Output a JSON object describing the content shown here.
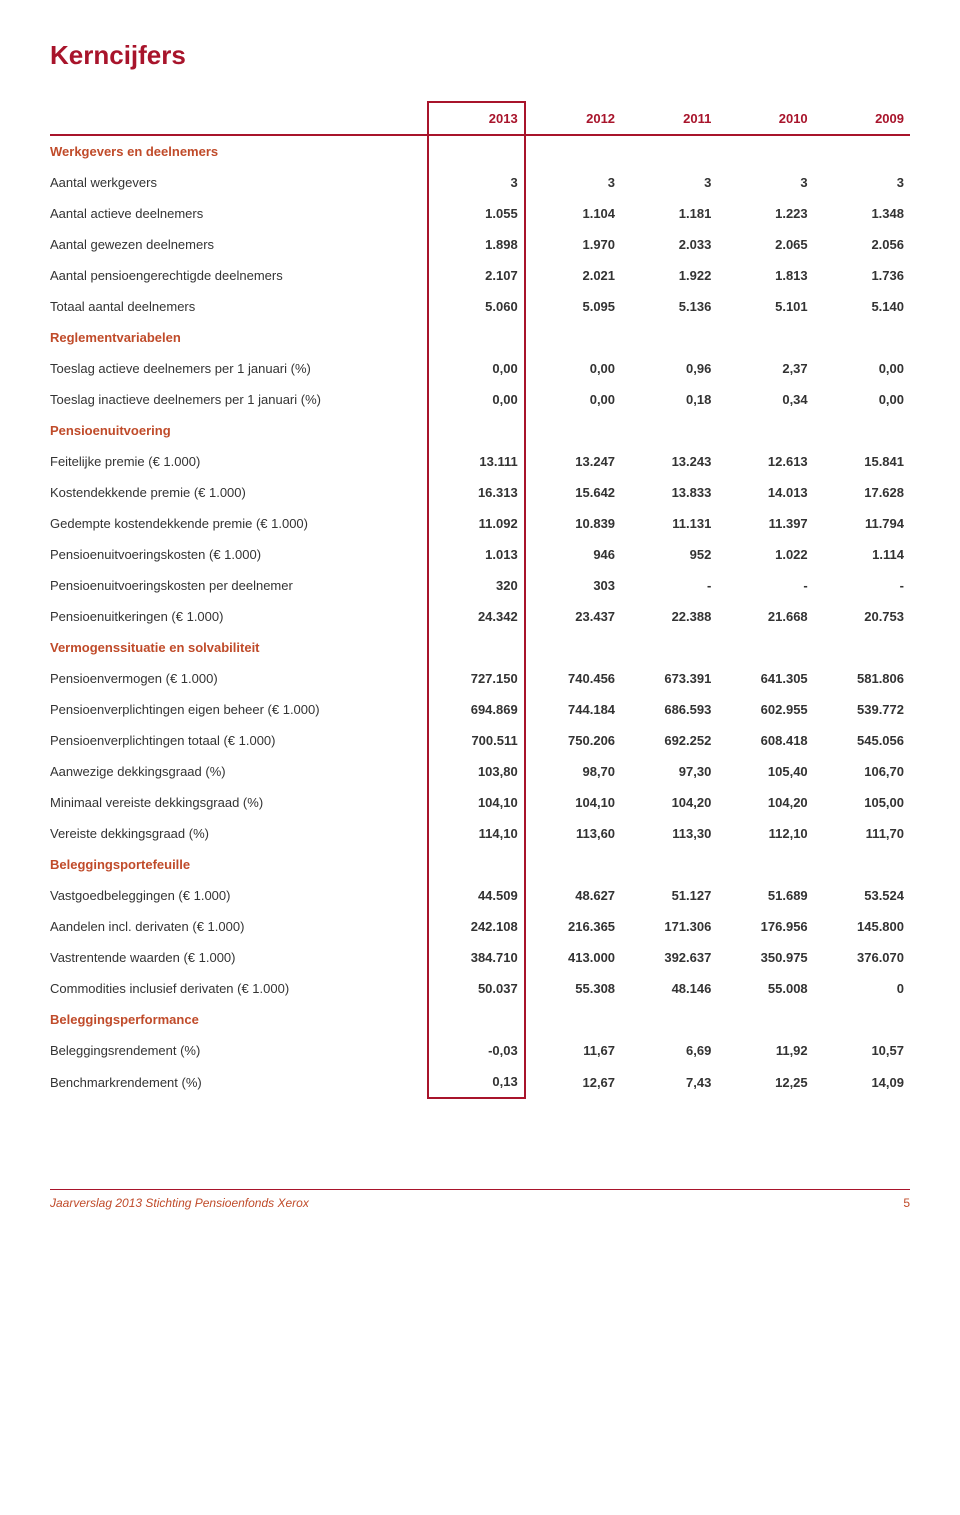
{
  "colors": {
    "title": "#a8142b",
    "section": "#c04b2a",
    "body_text": "#333333",
    "footer_text": "#c04b2a",
    "border": "#a8142b"
  },
  "title": "Kerncijfers",
  "years": [
    "2013",
    "2012",
    "2011",
    "2010",
    "2009"
  ],
  "sections": [
    {
      "heading": "Werkgevers en deelnemers",
      "rows": [
        {
          "label": "Aantal werkgevers",
          "values": [
            "3",
            "3",
            "3",
            "3",
            "3"
          ]
        },
        {
          "label": "Aantal actieve deelnemers",
          "values": [
            "1.055",
            "1.104",
            "1.181",
            "1.223",
            "1.348"
          ]
        },
        {
          "label": "Aantal gewezen deelnemers",
          "values": [
            "1.898",
            "1.970",
            "2.033",
            "2.065",
            "2.056"
          ]
        },
        {
          "label": "Aantal pensioengerechtigde deelnemers",
          "values": [
            "2.107",
            "2.021",
            "1.922",
            "1.813",
            "1.736"
          ]
        },
        {
          "label": "Totaal aantal deelnemers",
          "values": [
            "5.060",
            "5.095",
            "5.136",
            "5.101",
            "5.140"
          ]
        }
      ]
    },
    {
      "heading": "Reglementvariabelen",
      "rows": [
        {
          "label": "Toeslag actieve deelnemers per 1 januari (%)",
          "values": [
            "0,00",
            "0,00",
            "0,96",
            "2,37",
            "0,00"
          ]
        },
        {
          "label": "Toeslag inactieve deelnemers per 1 januari (%)",
          "values": [
            "0,00",
            "0,00",
            "0,18",
            "0,34",
            "0,00"
          ]
        }
      ]
    },
    {
      "heading": "Pensioenuitvoering",
      "rows": [
        {
          "label": "Feitelijke premie (€ 1.000)",
          "values": [
            "13.111",
            "13.247",
            "13.243",
            "12.613",
            "15.841"
          ]
        },
        {
          "label": "Kostendekkende premie (€ 1.000)",
          "values": [
            "16.313",
            "15.642",
            "13.833",
            "14.013",
            "17.628"
          ]
        },
        {
          "label": "Gedempte kostendekkende premie (€ 1.000)",
          "values": [
            "11.092",
            "10.839",
            "11.131",
            "11.397",
            "11.794"
          ]
        },
        {
          "label": "Pensioenuitvoeringskosten (€ 1.000)",
          "values": [
            "1.013",
            "946",
            "952",
            "1.022",
            "1.114"
          ]
        },
        {
          "label": "Pensioenuitvoeringskosten per deelnemer",
          "values": [
            "320",
            "303",
            "-",
            "-",
            "-"
          ]
        },
        {
          "label": "Pensioenuitkeringen (€ 1.000)",
          "values": [
            "24.342",
            "23.437",
            "22.388",
            "21.668",
            "20.753"
          ]
        }
      ]
    },
    {
      "heading": "Vermogenssituatie en solvabiliteit",
      "rows": [
        {
          "label": "Pensioenvermogen (€ 1.000)",
          "values": [
            "727.150",
            "740.456",
            "673.391",
            "641.305",
            "581.806"
          ]
        },
        {
          "label": "Pensioenverplichtingen eigen beheer (€ 1.000)",
          "values": [
            "694.869",
            "744.184",
            "686.593",
            "602.955",
            "539.772"
          ]
        },
        {
          "label": "Pensioenverplichtingen totaal (€ 1.000)",
          "values": [
            "700.511",
            "750.206",
            "692.252",
            "608.418",
            "545.056"
          ]
        },
        {
          "label": "Aanwezige dekkingsgraad (%)",
          "values": [
            "103,80",
            "98,70",
            "97,30",
            "105,40",
            "106,70"
          ]
        },
        {
          "label": "Minimaal vereiste dekkingsgraad (%)",
          "values": [
            "104,10",
            "104,10",
            "104,20",
            "104,20",
            "105,00"
          ]
        },
        {
          "label": "Vereiste dekkingsgraad (%)",
          "values": [
            "114,10",
            "113,60",
            "113,30",
            "112,10",
            "111,70"
          ]
        }
      ]
    },
    {
      "heading": "Beleggingsportefeuille",
      "rows": [
        {
          "label": "Vastgoedbeleggingen (€ 1.000)",
          "values": [
            "44.509",
            "48.627",
            "51.127",
            "51.689",
            "53.524"
          ]
        },
        {
          "label": "Aandelen incl. derivaten (€ 1.000)",
          "values": [
            "242.108",
            "216.365",
            "171.306",
            "176.956",
            "145.800"
          ]
        },
        {
          "label": "Vastrentende waarden (€ 1.000)",
          "values": [
            "384.710",
            "413.000",
            "392.637",
            "350.975",
            "376.070"
          ]
        },
        {
          "label": "Commodities inclusief derivaten (€ 1.000)",
          "values": [
            "50.037",
            "55.308",
            "48.146",
            "55.008",
            "0"
          ]
        }
      ]
    },
    {
      "heading": "Beleggingsperformance",
      "rows": [
        {
          "label": "Beleggingsrendement (%)",
          "values": [
            "-0,03",
            "11,67",
            "6,69",
            "11,92",
            "10,57"
          ]
        },
        {
          "label": "Benchmarkrendement (%)",
          "values": [
            "0,13",
            "12,67",
            "7,43",
            "12,25",
            "14,09"
          ]
        }
      ]
    }
  ],
  "footer": {
    "text": "Jaarverslag 2013 Stichting Pensioenfonds Xerox",
    "page": "5"
  }
}
